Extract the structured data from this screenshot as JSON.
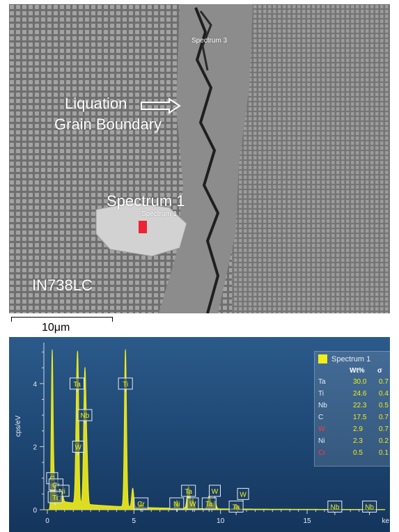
{
  "micrograph": {
    "liquation_line1": "Liquation",
    "liquation_line2": "Grain Boundary",
    "spectrum1_label": "Spectrum 1",
    "spectrum1_small": "Spectrum 1",
    "spectrum3_small": "Spectrum 3",
    "material": "IN738LC",
    "scale_bar": "10μm",
    "marker_color": "#ee2233"
  },
  "chart_data": {
    "type": "line",
    "xlabel": "ke",
    "ylabel": "cps/eV",
    "xlim": [
      -0.2,
      19.5
    ],
    "ylim": [
      0,
      5.3
    ],
    "xticks": [
      0,
      5,
      10,
      15
    ],
    "yticks": [
      0,
      2,
      4
    ],
    "line_color": "#f2ee1a",
    "peaks": [
      {
        "x": 0.28,
        "y": 4.7,
        "w": 0.05
      },
      {
        "x": 0.4,
        "y": 0.55,
        "w": 0.06
      },
      {
        "x": 0.52,
        "y": 0.3,
        "w": 0.05
      },
      {
        "x": 0.85,
        "y": 0.3,
        "w": 0.06
      },
      {
        "x": 1.7,
        "y": 3.4,
        "w": 0.06
      },
      {
        "x": 1.78,
        "y": 2.9,
        "w": 0.05
      },
      {
        "x": 2.17,
        "y": 4.3,
        "w": 0.07
      },
      {
        "x": 2.3,
        "y": 1.0,
        "w": 0.05
      },
      {
        "x": 4.51,
        "y": 5.0,
        "w": 0.06
      },
      {
        "x": 4.93,
        "y": 0.6,
        "w": 0.06
      },
      {
        "x": 5.41,
        "y": 0.15,
        "w": 0.06
      },
      {
        "x": 7.47,
        "y": 0.25,
        "w": 0.07
      },
      {
        "x": 8.15,
        "y": 0.7,
        "w": 0.08
      },
      {
        "x": 8.4,
        "y": 0.3,
        "w": 0.07
      },
      {
        "x": 9.34,
        "y": 0.4,
        "w": 0.08
      },
      {
        "x": 9.67,
        "y": 0.25,
        "w": 0.07
      },
      {
        "x": 10.9,
        "y": 0.15,
        "w": 0.08
      }
    ],
    "element_markers": [
      {
        "label": "Ta",
        "x": 1.71,
        "level": 4
      },
      {
        "label": "Nb",
        "x": 2.17,
        "level": 3
      },
      {
        "label": "W",
        "x": 1.78,
        "level": 2
      },
      {
        "label": "Ti",
        "x": 4.51,
        "level": 4
      },
      {
        "label": "C",
        "x": 0.28,
        "level": 1
      },
      {
        "label": "Cr",
        "x": 0.5,
        "level": 0.8
      },
      {
        "label": "Ni",
        "x": 0.85,
        "level": 0.6
      },
      {
        "label": "Ti",
        "x": 0.45,
        "level": 0.4
      },
      {
        "label": "Cr",
        "x": 5.41,
        "level": 0.2
      },
      {
        "label": "Ni",
        "x": 7.47,
        "level": 0.2
      },
      {
        "label": "Ta",
        "x": 8.15,
        "level": 0.6
      },
      {
        "label": "W",
        "x": 8.4,
        "level": 0.2
      },
      {
        "label": "W",
        "x": 9.67,
        "level": 0.6
      },
      {
        "label": "Ta",
        "x": 9.34,
        "level": 0.2
      },
      {
        "label": "W",
        "x": 11.3,
        "level": 0.5
      },
      {
        "label": "Ta",
        "x": 10.9,
        "level": 0.1
      },
      {
        "label": "Nb",
        "x": 16.6,
        "level": 0.1
      },
      {
        "label": "Nb",
        "x": 18.6,
        "level": 0.1
      }
    ],
    "legend": {
      "title": "Spectrum 1",
      "head_wt": "Wt%",
      "head_sigma": "σ",
      "rows": [
        {
          "el": "Ta",
          "wt": "30.0",
          "sigma": "0.7",
          "color": "#e8eef5"
        },
        {
          "el": "Ti",
          "wt": "24.6",
          "sigma": "0.4",
          "color": "#e8eef5"
        },
        {
          "el": "Nb",
          "wt": "22.3",
          "sigma": "0.5",
          "color": "#e8eef5"
        },
        {
          "el": "C",
          "wt": "17.5",
          "sigma": "0.7",
          "color": "#e8eef5"
        },
        {
          "el": "W",
          "wt": "2.9",
          "sigma": "0.7",
          "color": "#ff3b3b"
        },
        {
          "el": "Ni",
          "wt": "2.3",
          "sigma": "0.2",
          "color": "#e8eef5"
        },
        {
          "el": "Cr",
          "wt": "0.5",
          "sigma": "0.1",
          "color": "#ff3b3b"
        }
      ]
    }
  }
}
